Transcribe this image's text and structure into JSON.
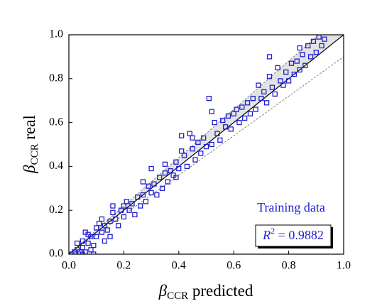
{
  "chart_data": {
    "type": "scatter",
    "xlabel": {
      "symbol": "β",
      "subscript": "CCR",
      "text": "predicted"
    },
    "ylabel": {
      "symbol": "β",
      "subscript": "CCR",
      "text": "real"
    },
    "r2": {
      "symbol": "R",
      "superscript": "2",
      "text": "= 0.9882"
    },
    "xlim": [
      0,
      1
    ],
    "ylim": [
      0,
      1
    ],
    "xticks": [
      {
        "value": 0,
        "label": "0.0"
      },
      0.2,
      0.4,
      0.6,
      0.8,
      {
        "value": 1,
        "label": "1.0"
      }
    ],
    "yticks": [
      {
        "value": 0,
        "label": "0.0"
      },
      0.2,
      0.4,
      0.6,
      0.8,
      {
        "value": 1,
        "label": "1.0"
      }
    ],
    "reference_lines": [
      {
        "slope": 1,
        "style": "solid",
        "color": "#000000"
      },
      {
        "slope": 1.1,
        "style": "dashed",
        "color": "#777777"
      },
      {
        "slope": 0.9,
        "style": "dashed",
        "color": "#777777"
      }
    ],
    "band": {
      "slopes": [
        1,
        1.1
      ],
      "color": "#e3e3e3"
    },
    "series": [
      {
        "name": "Training data",
        "color": "#2020d0",
        "x": [
          0.01,
          0.02,
          0.03,
          0.04,
          0.05,
          0.06,
          0.03,
          0.05,
          0.07,
          0.08,
          0.09,
          0.07,
          0.08,
          0.1,
          0.1,
          0.12,
          0.11,
          0.13,
          0.14,
          0.15,
          0.13,
          0.06,
          0.16,
          0.17,
          0.18,
          0.19,
          0.2,
          0.16,
          0.21,
          0.22,
          0.23,
          0.24,
          0.25,
          0.26,
          0.27,
          0.28,
          0.29,
          0.3,
          0.3,
          0.31,
          0.32,
          0.33,
          0.34,
          0.35,
          0.36,
          0.37,
          0.38,
          0.39,
          0.4,
          0.41,
          0.42,
          0.43,
          0.44,
          0.45,
          0.46,
          0.47,
          0.48,
          0.49,
          0.5,
          0.51,
          0.52,
          0.52,
          0.53,
          0.54,
          0.55,
          0.56,
          0.57,
          0.58,
          0.59,
          0.6,
          0.61,
          0.62,
          0.63,
          0.64,
          0.65,
          0.66,
          0.67,
          0.68,
          0.69,
          0.7,
          0.71,
          0.72,
          0.73,
          0.73,
          0.74,
          0.75,
          0.76,
          0.77,
          0.78,
          0.79,
          0.8,
          0.81,
          0.82,
          0.83,
          0.84,
          0.85,
          0.86,
          0.87,
          0.88,
          0.89,
          0.9,
          0.91,
          0.92,
          0.93,
          0.84,
          0.35,
          0.45,
          0.41,
          0.39,
          0.15,
          0.09,
          0.05,
          0.12,
          0.2,
          0.27
        ],
        "y": [
          0.0,
          0.01,
          0.02,
          0.01,
          0.03,
          0.01,
          0.05,
          0.06,
          0.05,
          0.02,
          0.04,
          0.09,
          0.08,
          0.08,
          0.12,
          0.1,
          0.14,
          0.13,
          0.11,
          0.15,
          0.06,
          0.1,
          0.19,
          0.16,
          0.13,
          0.2,
          0.17,
          0.22,
          0.24,
          0.2,
          0.23,
          0.18,
          0.26,
          0.22,
          0.27,
          0.24,
          0.31,
          0.39,
          0.28,
          0.32,
          0.27,
          0.35,
          0.3,
          0.37,
          0.33,
          0.38,
          0.36,
          0.42,
          0.39,
          0.54,
          0.45,
          0.4,
          0.55,
          0.48,
          0.43,
          0.51,
          0.46,
          0.53,
          0.49,
          0.71,
          0.65,
          0.5,
          0.6,
          0.55,
          0.52,
          0.61,
          0.58,
          0.63,
          0.57,
          0.64,
          0.66,
          0.6,
          0.67,
          0.62,
          0.69,
          0.64,
          0.71,
          0.66,
          0.77,
          0.71,
          0.74,
          0.69,
          0.81,
          0.9,
          0.76,
          0.73,
          0.85,
          0.79,
          0.77,
          0.83,
          0.79,
          0.87,
          0.82,
          0.88,
          0.84,
          0.91,
          0.86,
          0.95,
          0.9,
          0.97,
          0.92,
          0.99,
          0.95,
          0.98,
          0.94,
          0.41,
          0.53,
          0.47,
          0.35,
          0.08,
          0.0,
          0.0,
          0.16,
          0.22,
          0.33
        ]
      }
    ]
  }
}
